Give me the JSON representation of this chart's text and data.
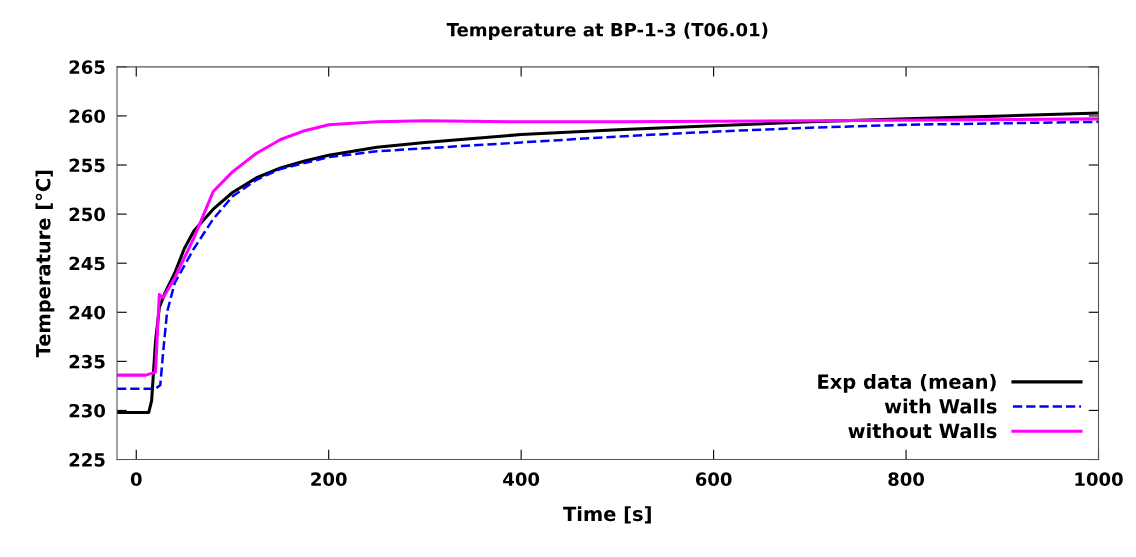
{
  "chart_data": {
    "type": "line",
    "title": "Temperature at BP-1-3 (T06.01)",
    "xlabel": "Time [s]",
    "ylabel": "Temperature [°C]",
    "xlim": [
      -20,
      1000
    ],
    "xticks": [
      0,
      200,
      400,
      600,
      800,
      1000
    ],
    "ylim": [
      225,
      265
    ],
    "yticks": [
      225,
      230,
      235,
      240,
      245,
      250,
      255,
      260,
      265
    ],
    "grid": false,
    "legend": "bottom right",
    "marker": "none",
    "series": [
      {
        "name": "Exp data (mean)",
        "color": "#000000",
        "line_style": "solid",
        "x": [
          -20,
          13,
          16,
          20,
          24,
          30,
          40,
          50,
          60,
          80,
          100,
          125,
          150,
          175,
          200,
          250,
          300,
          350,
          400,
          500,
          600,
          700,
          800,
          900,
          1000
        ],
        "values": [
          229.8,
          229.8,
          231,
          237,
          240.5,
          242,
          244,
          246.5,
          248.3,
          250.5,
          252.2,
          253.7,
          254.7,
          255.4,
          256,
          256.8,
          257.3,
          257.7,
          258.1,
          258.6,
          259,
          259.4,
          259.7,
          260,
          260.3
        ]
      },
      {
        "name": "with Walls",
        "color": "#0000ff",
        "line_style": "dashed",
        "x": [
          -20,
          20,
          25,
          28,
          32,
          40,
          60,
          80,
          100,
          125,
          150,
          200,
          250,
          300,
          400,
          500,
          600,
          700,
          800,
          1000
        ],
        "values": [
          232.2,
          232.2,
          232.6,
          236,
          240,
          243,
          246.5,
          249.5,
          251.8,
          253.5,
          254.6,
          255.8,
          256.4,
          256.7,
          257.3,
          257.9,
          258.4,
          258.8,
          259.1,
          259.4
        ]
      },
      {
        "name": "without Walls",
        "color": "#ff00ff",
        "line_style": "solid",
        "x": [
          -20,
          10,
          20,
          22,
          24,
          28,
          40,
          60,
          80,
          100,
          125,
          150,
          175,
          200,
          250,
          300,
          400,
          500,
          700,
          1000
        ],
        "values": [
          233.6,
          233.6,
          233.9,
          238,
          241.8,
          241.5,
          243.5,
          247.6,
          252.3,
          254.3,
          256.2,
          257.6,
          258.5,
          259.1,
          259.4,
          259.5,
          259.4,
          259.4,
          259.5,
          259.7
        ]
      }
    ]
  }
}
